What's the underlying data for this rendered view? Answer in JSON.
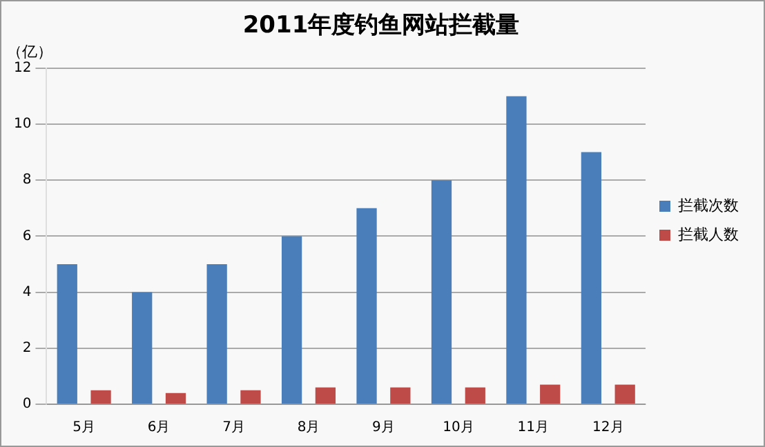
{
  "chart_data": {
    "type": "bar",
    "title": "2011年度钓鱼网站拦截量",
    "ylabel": "（亿）",
    "categories": [
      "5月",
      "6月",
      "7月",
      "8月",
      "9月",
      "10月",
      "11月",
      "12月"
    ],
    "series": [
      {
        "name": "拦截次数",
        "color": "#4a7ebb",
        "values": [
          5,
          4,
          5,
          6,
          7,
          8,
          11,
          9
        ]
      },
      {
        "name": "拦截人数",
        "color": "#be4b48",
        "values": [
          0.5,
          0.4,
          0.5,
          0.6,
          0.6,
          0.6,
          0.7,
          0.7
        ]
      }
    ],
    "ylim": [
      0,
      12
    ],
    "yticks": [
      0,
      2,
      4,
      6,
      8,
      10,
      12
    ],
    "grid": "y",
    "legend": "right"
  }
}
